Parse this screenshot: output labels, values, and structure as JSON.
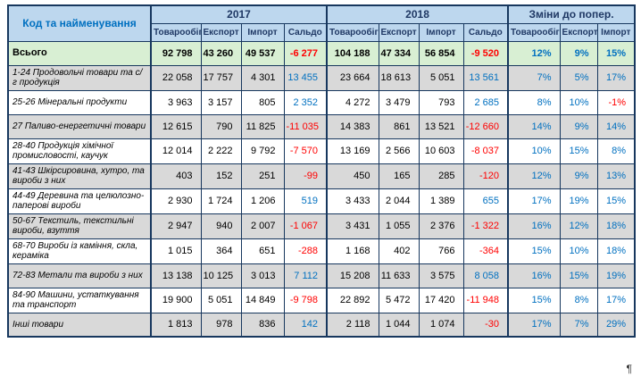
{
  "page": {
    "pilcrow": "¶"
  },
  "colors": {
    "header_bg": "#BDD7EE",
    "header_text": "#1F3864",
    "corner_text": "#0070C0",
    "total_row_bg": "#D8EFD3",
    "shade_row_bg": "#D9D9D9",
    "positive_value": "#0070C0",
    "negative_value": "#FF0000",
    "border": "#17375E"
  },
  "table": {
    "corner_header": "Код та найменування",
    "groups": [
      {
        "label": "2017",
        "cols": [
          "Товарообіг",
          "Експорт",
          "Імпорт",
          "Сальдо"
        ]
      },
      {
        "label": "2018",
        "cols": [
          "Товарообіг",
          "Експорт",
          "Імпорт",
          "Сальдо"
        ]
      },
      {
        "label": "Зміни до попер.",
        "cols": [
          "Товарообіг",
          "Експорт",
          "Імпорт"
        ]
      }
    ],
    "total_row": {
      "name": "Всього",
      "values": [
        "92 798",
        "43 260",
        "49 537",
        "-6 277",
        "104 188",
        "47 334",
        "56 854",
        "-9 520",
        "12%",
        "9%",
        "15%"
      ]
    },
    "rows": [
      {
        "name": "1-24 Продовольчі товари та с/г продукція",
        "values": [
          "22 058",
          "17 757",
          "4 301",
          "13 455",
          "23 664",
          "18 613",
          "5 051",
          "13 561",
          "7%",
          "5%",
          "17%"
        ]
      },
      {
        "name": "25-26 Мінеральні продукти",
        "values": [
          "3 963",
          "3 157",
          "805",
          "2 352",
          "4 272",
          "3 479",
          "793",
          "2 685",
          "8%",
          "10%",
          "-1%"
        ]
      },
      {
        "name": "27 Паливо-енергетичні товари",
        "values": [
          "12 615",
          "790",
          "11 825",
          "-11 035",
          "14 383",
          "861",
          "13 521",
          "-12 660",
          "14%",
          "9%",
          "14%"
        ]
      },
      {
        "name": "28-40 Продукція хімічної промисловості, каучук",
        "values": [
          "12 014",
          "2 222",
          "9 792",
          "-7 570",
          "13 169",
          "2 566",
          "10 603",
          "-8 037",
          "10%",
          "15%",
          "8%"
        ]
      },
      {
        "name": "41-43 Шкірсировина, хутро, та вироби з них",
        "values": [
          "403",
          "152",
          "251",
          "-99",
          "450",
          "165",
          "285",
          "-120",
          "12%",
          "9%",
          "13%"
        ]
      },
      {
        "name": "44-49 Деревина та целюлозно-паперові вироби",
        "values": [
          "2 930",
          "1 724",
          "1 206",
          "519",
          "3 433",
          "2 044",
          "1 389",
          "655",
          "17%",
          "19%",
          "15%"
        ]
      },
      {
        "name": "50-67 Текстиль, текстильні вироби, взуття",
        "values": [
          "2 947",
          "940",
          "2 007",
          "-1 067",
          "3 431",
          "1 055",
          "2 376",
          "-1 322",
          "16%",
          "12%",
          "18%"
        ]
      },
      {
        "name": "68-70 Вироби із каміння, скла, кераміка",
        "values": [
          "1 015",
          "364",
          "651",
          "-288",
          "1 168",
          "402",
          "766",
          "-364",
          "15%",
          "10%",
          "18%"
        ]
      },
      {
        "name": "72-83 Метали та вироби з них",
        "values": [
          "13 138",
          "10 125",
          "3 013",
          "7 112",
          "15 208",
          "11 633",
          "3 575",
          "8 058",
          "16%",
          "15%",
          "19%"
        ]
      },
      {
        "name": "84-90 Машини, устаткування та транспорт",
        "values": [
          "19 900",
          "5 051",
          "14 849",
          "-9 798",
          "22 892",
          "5 472",
          "17 420",
          "-11 948",
          "15%",
          "8%",
          "17%"
        ]
      },
      {
        "name": "Інші товари",
        "values": [
          "1 813",
          "978",
          "836",
          "142",
          "2 118",
          "1 044",
          "1 074",
          "-30",
          "17%",
          "7%",
          "29%"
        ]
      }
    ]
  }
}
